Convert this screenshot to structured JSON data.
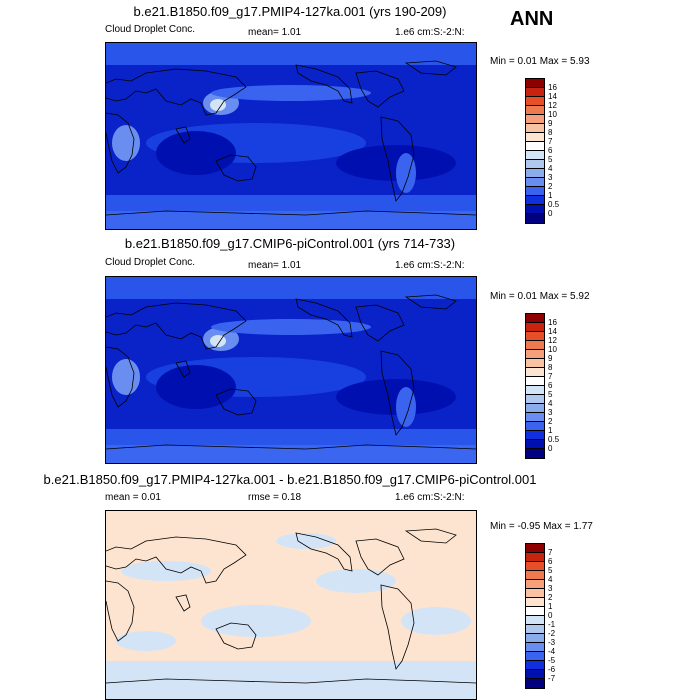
{
  "season": "ANN",
  "panels": [
    {
      "title": "b.e21.B1850.f09_g17.PMIP4-127ka.001 (yrs 190-209)",
      "left_label": "Cloud Droplet Conc.",
      "center_label": "mean=   1.01",
      "units": "1.e6 cm:S:-2:N:",
      "stats": "Min =  0.01 Max =   5.93",
      "levels": [
        "16",
        "14",
        "12",
        "10",
        "9",
        "8",
        "7",
        "6",
        "5",
        "4",
        "3",
        "2",
        "1",
        "0.5",
        "0"
      ],
      "colors": [
        "#8e0000",
        "#c8230e",
        "#e84e28",
        "#f07a50",
        "#f5a07a",
        "#f9c2a2",
        "#fde4d0",
        "#ffffff",
        "#d4e4f7",
        "#b0c8ee",
        "#8aacea",
        "#6a8ef0",
        "#3a64f0",
        "#1030e0",
        "#0010b0",
        "#000080"
      ]
    },
    {
      "title": "b.e21.B1850.f09_g17.CMIP6-piControl.001 (yrs 714-733)",
      "left_label": "Cloud Droplet Conc.",
      "center_label": "mean=   1.01",
      "units": "1.e6 cm:S:-2:N:",
      "stats": "Min =  0.01 Max =   5.92",
      "levels": [
        "16",
        "14",
        "12",
        "10",
        "9",
        "8",
        "7",
        "6",
        "5",
        "4",
        "3",
        "2",
        "1",
        "0.5",
        "0"
      ],
      "colors": [
        "#8e0000",
        "#c8230e",
        "#e84e28",
        "#f07a50",
        "#f5a07a",
        "#f9c2a2",
        "#fde4d0",
        "#ffffff",
        "#d4e4f7",
        "#b0c8ee",
        "#8aacea",
        "#6a8ef0",
        "#3a64f0",
        "#1030e0",
        "#0010b0",
        "#000080"
      ]
    },
    {
      "title": "b.e21.B1850.f09_g17.PMIP4-127ka.001 - b.e21.B1850.f09_g17.CMIP6-piControl.001",
      "left_label": "mean =  0.01",
      "center_label": "rmse =  0.18",
      "units": "1.e6 cm:S:-2:N:",
      "stats": "Min = -0.95 Max =   1.77",
      "levels": [
        "7",
        "6",
        "5",
        "4",
        "3",
        "2",
        "1",
        "0",
        "-1",
        "-2",
        "-3",
        "-4",
        "-5",
        "-6",
        "-7"
      ],
      "colors": [
        "#8e0000",
        "#c8230e",
        "#e84e28",
        "#f07a50",
        "#f5a07a",
        "#f9c2a2",
        "#fde4d0",
        "#ffffff",
        "#d4e4f7",
        "#b0c8ee",
        "#8aacea",
        "#6a8ef0",
        "#3a64f0",
        "#1030e0",
        "#0010b0",
        "#000080"
      ]
    }
  ]
}
